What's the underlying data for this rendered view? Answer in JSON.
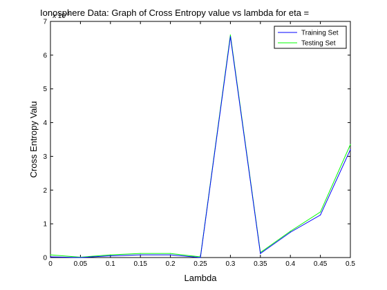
{
  "chart_data": {
    "type": "line",
    "title": "Ionosphere Data: Graph of Cross Entropy value vs lambda for eta =",
    "xlabel": "Lambda",
    "ylabel": "Cross Entropy Valu",
    "y_exponent_label": "x 10",
    "y_exponent_power": "-4",
    "xlim": [
      0,
      0.5
    ],
    "ylim": [
      0,
      7
    ],
    "xticks": [
      "0",
      "0.05",
      "0.1",
      "0.15",
      "0.2",
      "0.25",
      "0.3",
      "0.35",
      "0.4",
      "0.45",
      "0.5"
    ],
    "yticks": [
      "0",
      "1",
      "2",
      "3",
      "4",
      "5",
      "6",
      "7"
    ],
    "grid": false,
    "legend_position": "top-right",
    "x": [
      0,
      0.05,
      0.1,
      0.15,
      0.2,
      0.25,
      0.3,
      0.35,
      0.4,
      0.45,
      0.5
    ],
    "series": [
      {
        "name": "Training Set",
        "color": "#0000ff",
        "values": [
          0.02,
          0.0,
          0.05,
          0.08,
          0.08,
          0.0,
          6.55,
          0.12,
          0.75,
          1.26,
          3.2
        ]
      },
      {
        "name": "Testing Set",
        "color": "#00ff00",
        "values": [
          0.08,
          0.01,
          0.08,
          0.12,
          0.12,
          0.02,
          6.6,
          0.15,
          0.78,
          1.35,
          3.35
        ]
      }
    ]
  }
}
